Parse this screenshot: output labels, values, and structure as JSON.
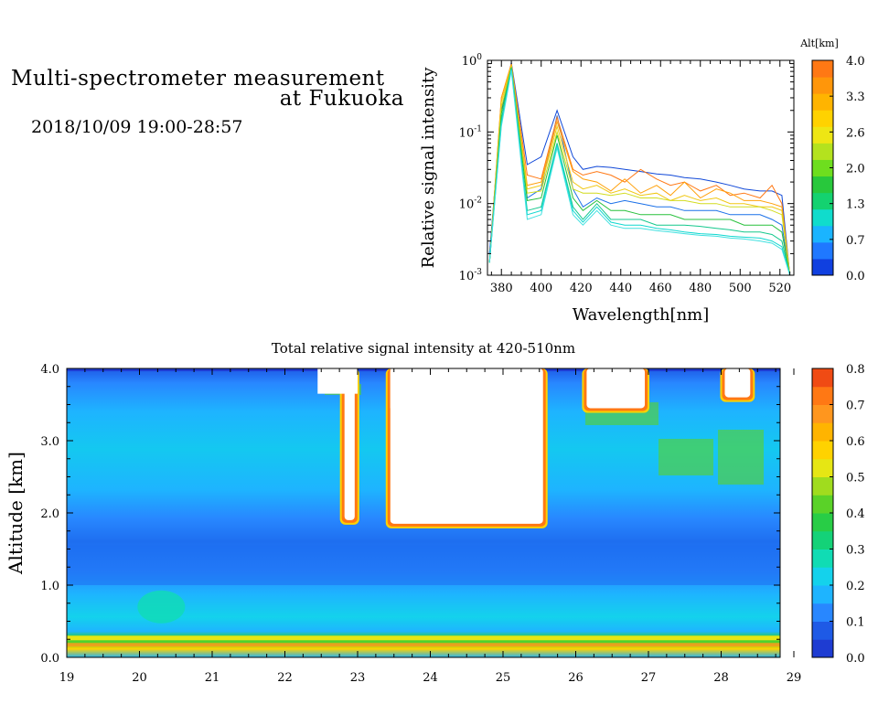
{
  "header": {
    "title_line1": "Multi-spectrometer measurement",
    "title_line2": "at Fukuoka",
    "datetime": "2018/10/09 19:00-28:57"
  },
  "chart_data": [
    {
      "type": "line",
      "xlabel": "Wavelength[nm]",
      "ylabel": "Relative signal intensity",
      "x_ticks": [
        380,
        400,
        420,
        440,
        460,
        480,
        500,
        520
      ],
      "xlim": [
        373,
        527
      ],
      "ylim": [
        0.001,
        1
      ],
      "yscale": "log",
      "y_tick_labels": [
        {
          "base": "10",
          "exp": "0"
        },
        {
          "base": "10",
          "exp": "-1"
        },
        {
          "base": "10",
          "exp": "-2"
        },
        {
          "base": "10",
          "exp": "-3"
        }
      ],
      "legend_title": "Alt[km]",
      "legend_labels": [
        "4.0",
        "3.3",
        "2.6",
        "2.0",
        "1.3",
        "0.7",
        "0.0"
      ],
      "legend_colors": [
        "#1040e0",
        "#1f78ff",
        "#1ab4ff",
        "#10dccc",
        "#14d270",
        "#28c83c",
        "#6ede1e",
        "#b4e21e",
        "#eee614",
        "#ffd200",
        "#ffb400",
        "#ff960a",
        "#ff7814"
      ],
      "x": [
        374,
        380,
        385,
        393,
        400,
        408,
        416,
        421,
        428,
        435,
        442,
        450,
        458,
        465,
        472,
        480,
        488,
        495,
        502,
        510,
        516,
        521,
        525
      ],
      "series": [
        {
          "color": "#1048d8",
          "values": [
            0.002,
            0.2,
            0.93,
            0.035,
            0.045,
            0.2,
            0.045,
            0.03,
            0.033,
            0.032,
            0.03,
            0.028,
            0.026,
            0.025,
            0.023,
            0.022,
            0.02,
            0.018,
            0.016,
            0.015,
            0.015,
            0.013,
            0.001
          ]
        },
        {
          "color": "#1a70e8",
          "values": [
            0.002,
            0.14,
            0.9,
            0.012,
            0.016,
            0.17,
            0.016,
            0.009,
            0.012,
            0.01,
            0.011,
            0.01,
            0.009,
            0.009,
            0.008,
            0.008,
            0.008,
            0.007,
            0.007,
            0.007,
            0.006,
            0.005,
            0.001
          ]
        },
        {
          "color": "#ff7814",
          "values": [
            0.0015,
            0.3,
            0.9,
            0.025,
            0.022,
            0.16,
            0.03,
            0.025,
            0.028,
            0.025,
            0.02,
            0.03,
            0.022,
            0.018,
            0.02,
            0.015,
            0.018,
            0.013,
            0.014,
            0.012,
            0.018,
            0.01,
            0.001
          ]
        },
        {
          "color": "#ffa00a",
          "values": [
            0.0015,
            0.3,
            0.88,
            0.018,
            0.02,
            0.14,
            0.028,
            0.022,
            0.02,
            0.015,
            0.022,
            0.014,
            0.018,
            0.013,
            0.02,
            0.012,
            0.016,
            0.014,
            0.011,
            0.011,
            0.01,
            0.009,
            0.001
          ]
        },
        {
          "color": "#f0c814",
          "values": [
            0.0015,
            0.26,
            0.85,
            0.016,
            0.018,
            0.12,
            0.02,
            0.016,
            0.018,
            0.014,
            0.016,
            0.013,
            0.014,
            0.011,
            0.013,
            0.011,
            0.012,
            0.01,
            0.01,
            0.009,
            0.009,
            0.008,
            0.001
          ]
        },
        {
          "color": "#d2dc1e",
          "values": [
            0.0015,
            0.22,
            0.82,
            0.014,
            0.015,
            0.1,
            0.016,
            0.014,
            0.014,
            0.013,
            0.014,
            0.012,
            0.012,
            0.011,
            0.011,
            0.01,
            0.01,
            0.009,
            0.009,
            0.009,
            0.008,
            0.007,
            0.001
          ]
        },
        {
          "color": "#28c03c",
          "values": [
            0.0015,
            0.18,
            0.8,
            0.011,
            0.012,
            0.09,
            0.012,
            0.008,
            0.011,
            0.008,
            0.008,
            0.007,
            0.007,
            0.007,
            0.006,
            0.006,
            0.006,
            0.006,
            0.005,
            0.005,
            0.005,
            0.004,
            0.001
          ]
        },
        {
          "color": "#14c88c",
          "values": [
            0.0015,
            0.15,
            0.78,
            0.008,
            0.009,
            0.07,
            0.009,
            0.006,
            0.01,
            0.006,
            0.006,
            0.006,
            0.005,
            0.005,
            0.005,
            0.0048,
            0.0045,
            0.0043,
            0.004,
            0.004,
            0.0037,
            0.003,
            0.001
          ]
        },
        {
          "color": "#10d8d0",
          "values": [
            0.0015,
            0.13,
            0.75,
            0.007,
            0.008,
            0.065,
            0.008,
            0.0055,
            0.009,
            0.0055,
            0.005,
            0.005,
            0.0045,
            0.0043,
            0.004,
            0.0038,
            0.0037,
            0.0035,
            0.0034,
            0.0033,
            0.003,
            0.0025,
            0.001
          ]
        },
        {
          "color": "#40e0e0",
          "values": [
            0.0015,
            0.12,
            0.72,
            0.006,
            0.007,
            0.06,
            0.007,
            0.005,
            0.008,
            0.005,
            0.0045,
            0.0045,
            0.0042,
            0.004,
            0.0038,
            0.0036,
            0.0035,
            0.0033,
            0.0032,
            0.003,
            0.0028,
            0.0023,
            0.001
          ]
        }
      ]
    },
    {
      "type": "heatmap",
      "title": "Total relative signal intensity at 420-510nm",
      "ylabel": "Altitude [km]",
      "x_ticks": [
        19,
        20,
        21,
        22,
        23,
        24,
        25,
        26,
        27,
        28,
        29
      ],
      "y_ticks": [
        "0.0",
        "1.0",
        "2.0",
        "3.0",
        "4.0"
      ],
      "xlim": [
        19,
        29
      ],
      "ylim": [
        0,
        4
      ],
      "colorbar_labels": [
        "0.8",
        "0.7",
        "0.6",
        "0.5",
        "0.4",
        "0.3",
        "0.2",
        "0.1",
        "0.0"
      ],
      "colorbar_colors": [
        "#1e3cd2",
        "#1e5ae6",
        "#2887ff",
        "#1eb4ff",
        "#14d2ec",
        "#10dcb4",
        "#14d278",
        "#28cd46",
        "#5ad228",
        "#a0dc1e",
        "#e6e614",
        "#ffd200",
        "#ffb400",
        "#ff961e",
        "#ff7814",
        "#f04b14"
      ],
      "clouds": [
        {
          "t0": 22.82,
          "t1": 22.96,
          "alt_base": 1.9,
          "alt_top": 4.0
        },
        {
          "t0": 23.45,
          "t1": 25.55,
          "alt_base": 1.85,
          "alt_top": 4.0
        },
        {
          "t0": 26.15,
          "t1": 26.95,
          "alt_base": 3.45,
          "alt_top": 4.0
        },
        {
          "t0": 28.05,
          "t1": 28.4,
          "alt_base": 3.6,
          "alt_top": 4.0
        }
      ]
    }
  ]
}
